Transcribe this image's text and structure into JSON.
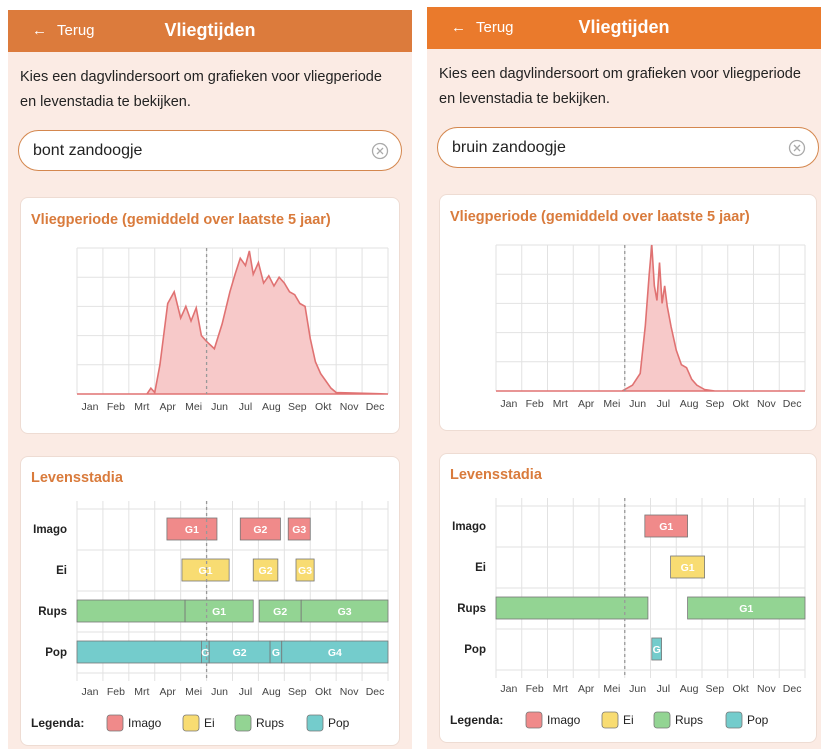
{
  "screens": [
    {
      "header": {
        "back": "Terug",
        "title": "Vliegtijden"
      },
      "intro": "Kies een dagvlindersoort om grafieken voor vliegperiode en levenstadia te bekijken.",
      "search": "bont zandoogje",
      "flight": {
        "title": "Vliegperiode (gemiddeld over laatste 5 jaar)",
        "months": [
          "Jan",
          "Feb",
          "Mrt",
          "Apr",
          "Mei",
          "Jun",
          "Jul",
          "Aug",
          "Sep",
          "Okt",
          "Nov",
          "Dec"
        ],
        "xlim": [
          0,
          12
        ],
        "ylim": [
          0,
          100
        ],
        "today": 5,
        "color": "#e07272",
        "fill": "#f7c9c9",
        "x": [
          0,
          2.7,
          2.85,
          3.0,
          3.2,
          3.5,
          3.75,
          4.0,
          4.2,
          4.4,
          4.6,
          4.8,
          5.0,
          5.3,
          5.6,
          5.9,
          6.1,
          6.3,
          6.5,
          6.65,
          6.8,
          7.0,
          7.2,
          7.4,
          7.6,
          7.8,
          8.0,
          8.2,
          8.4,
          8.6,
          8.8,
          9.0,
          9.2,
          9.4,
          9.6,
          9.8,
          10.0,
          12
        ],
        "values": [
          0,
          0,
          4,
          1,
          20,
          62,
          70,
          52,
          60,
          50,
          59,
          40,
          36,
          31,
          48,
          70,
          82,
          93,
          88,
          98,
          82,
          90,
          76,
          81,
          74,
          80,
          76,
          70,
          68,
          62,
          60,
          38,
          22,
          14,
          9,
          4,
          1,
          0
        ]
      },
      "stages": {
        "title": "Levensstadia",
        "months": [
          "Jan",
          "Feb",
          "Mrt",
          "Apr",
          "Mei",
          "Jun",
          "Jul",
          "Aug",
          "Sep",
          "Okt",
          "Nov",
          "Dec"
        ],
        "xlim": [
          0,
          12
        ],
        "today": 5,
        "rows": [
          {
            "name": "Imago",
            "color": "#f08a8a",
            "bars": [
              {
                "start": 3.47,
                "end": 5.4,
                "label": "G1"
              },
              {
                "start": 6.3,
                "end": 7.85,
                "label": "G2"
              },
              {
                "start": 8.15,
                "end": 9.0,
                "label": "G3"
              }
            ]
          },
          {
            "name": "Ei",
            "color": "#f8dc72",
            "bars": [
              {
                "start": 4.05,
                "end": 5.87,
                "label": "G1"
              },
              {
                "start": 6.8,
                "end": 7.75,
                "label": "G2"
              },
              {
                "start": 8.45,
                "end": 9.15,
                "label": "G3"
              }
            ]
          },
          {
            "name": "Rups",
            "color": "#93d493",
            "bars": [
              {
                "start": 0,
                "end": 4.17
              },
              {
                "start": 4.17,
                "end": 6.8,
                "label": "G1"
              },
              {
                "start": 7.03,
                "end": 8.65,
                "label": "G2"
              },
              {
                "start": 8.65,
                "end": 12,
                "label": "G3"
              }
            ]
          },
          {
            "name": "Pop",
            "color": "#74cccc",
            "bars": [
              {
                "start": 0,
                "end": 4.8
              },
              {
                "start": 4.8,
                "end": 5.1,
                "label": "G"
              },
              {
                "start": 5.1,
                "end": 7.45,
                "label": "G2"
              },
              {
                "start": 7.45,
                "end": 7.9,
                "label": "G"
              },
              {
                "start": 7.9,
                "end": 12,
                "label": "G4"
              }
            ]
          }
        ],
        "legend": {
          "title": "Legenda:"
        }
      }
    },
    {
      "header": {
        "back": "Terug",
        "title": "Vliegtijden"
      },
      "intro": "Kies een dagvlindersoort om grafieken voor vliegperiode en levenstadia te bekijken.",
      "search": "bruin zandoogje",
      "flight": {
        "title": "Vliegperiode (gemiddeld over laatste 5 jaar)",
        "months": [
          "Jan",
          "Feb",
          "Mrt",
          "Apr",
          "Mei",
          "Jun",
          "Jul",
          "Aug",
          "Sep",
          "Okt",
          "Nov",
          "Dec"
        ],
        "xlim": [
          0,
          12
        ],
        "ylim": [
          0,
          100
        ],
        "today": 5,
        "color": "#e07272",
        "fill": "#f7c9c9",
        "x": [
          0,
          4.9,
          5.3,
          5.6,
          5.8,
          5.95,
          6.05,
          6.15,
          6.25,
          6.35,
          6.45,
          6.55,
          6.65,
          6.8,
          7.0,
          7.2,
          7.4,
          7.6,
          7.8,
          8.1,
          8.5,
          12
        ],
        "values": [
          0,
          0,
          4,
          12,
          45,
          80,
          100,
          72,
          62,
          88,
          60,
          72,
          58,
          44,
          28,
          18,
          16,
          8,
          4,
          1,
          0,
          0
        ]
      },
      "stages": {
        "title": "Levensstadia",
        "months": [
          "Jan",
          "Feb",
          "Mrt",
          "Apr",
          "Mei",
          "Jun",
          "Jul",
          "Aug",
          "Sep",
          "Okt",
          "Nov",
          "Dec"
        ],
        "xlim": [
          0,
          12
        ],
        "today": 5,
        "rows": [
          {
            "name": "Imago",
            "color": "#f08a8a",
            "bars": [
              {
                "start": 5.78,
                "end": 7.44,
                "label": "G1"
              }
            ]
          },
          {
            "name": "Ei",
            "color": "#f8dc72",
            "bars": [
              {
                "start": 6.78,
                "end": 8.1,
                "label": "G1"
              }
            ]
          },
          {
            "name": "Rups",
            "color": "#93d493",
            "bars": [
              {
                "start": 0,
                "end": 5.9
              },
              {
                "start": 7.44,
                "end": 12,
                "label": "G1"
              }
            ]
          },
          {
            "name": "Pop",
            "color": "#74cccc",
            "bars": [
              {
                "start": 6.05,
                "end": 6.43,
                "label": "G"
              }
            ]
          }
        ],
        "legend": {
          "title": "Legenda:"
        }
      }
    }
  ]
}
